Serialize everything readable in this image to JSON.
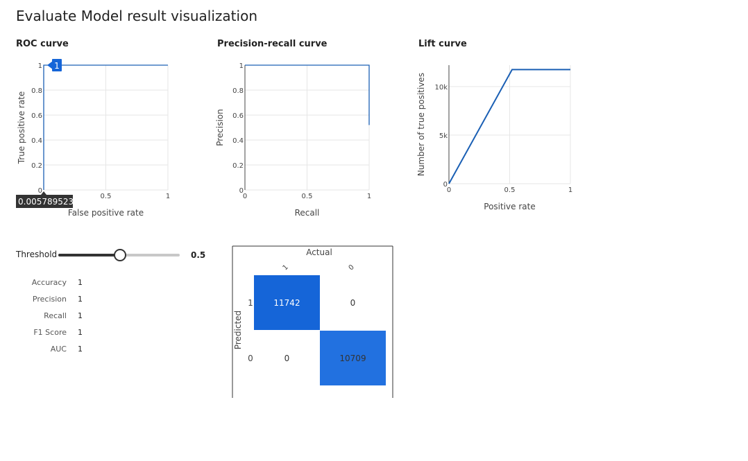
{
  "page": {
    "title": "Evaluate Model result visualization"
  },
  "threshold": {
    "label": "Threshold",
    "value": 0.5,
    "value_text": "0.5"
  },
  "metrics": [
    {
      "name": "Accuracy",
      "value": "1"
    },
    {
      "name": "Precision",
      "value": "1"
    },
    {
      "name": "Recall",
      "value": "1"
    },
    {
      "name": "F1 Score",
      "value": "1"
    },
    {
      "name": "AUC",
      "value": "1"
    }
  ],
  "chart_data": [
    {
      "type": "line",
      "title": "ROC curve",
      "xlabel": "False positive rate",
      "ylabel": "True positive rate",
      "xlim": [
        0,
        1
      ],
      "ylim": [
        0,
        1
      ],
      "x_ticks": [
        "0",
        "0.5",
        "1"
      ],
      "y_ticks": [
        "0",
        "0.2",
        "0.4",
        "0.6",
        "0.8",
        "1"
      ],
      "grid": true,
      "color": "#1a5fb4",
      "points": [
        [
          0,
          0
        ],
        [
          0,
          1
        ],
        [
          1,
          1
        ]
      ],
      "hover": {
        "x_text": "0.005789523",
        "y_text": "1"
      }
    },
    {
      "type": "line",
      "title": "Precision-recall curve",
      "xlabel": "Recall",
      "ylabel": "Precision",
      "xlim": [
        0,
        1
      ],
      "ylim": [
        0,
        1
      ],
      "x_ticks": [
        "0",
        "0.5",
        "1"
      ],
      "y_ticks": [
        "0",
        "0.2",
        "0.4",
        "0.6",
        "0.8",
        "1"
      ],
      "grid": true,
      "color": "#1a5fb4",
      "points": [
        [
          0,
          1
        ],
        [
          1,
          1
        ],
        [
          1,
          0.52
        ]
      ]
    },
    {
      "type": "line",
      "title": "Lift curve",
      "xlabel": "Positive rate",
      "ylabel": "Number of true positives",
      "xlim": [
        0,
        1
      ],
      "ylim": [
        0,
        12200
      ],
      "x_ticks": [
        "0",
        "0.5",
        "1"
      ],
      "y_tick_values": [
        0,
        5000,
        10000
      ],
      "y_ticks": [
        "0",
        "5k",
        "10k"
      ],
      "grid": true,
      "color": "#1a5fb4",
      "points": [
        [
          0,
          0
        ],
        [
          0.52,
          11742
        ],
        [
          1,
          11742
        ]
      ]
    },
    {
      "type": "heatmap",
      "title": "Actual",
      "ylabel": "Predicted",
      "col_labels": [
        "1",
        "0"
      ],
      "row_labels": [
        "1",
        "0"
      ],
      "values": [
        [
          11742,
          0
        ],
        [
          0,
          10709
        ]
      ],
      "colors": {
        "high": "#1565d8",
        "low": "#ffffff"
      }
    }
  ]
}
